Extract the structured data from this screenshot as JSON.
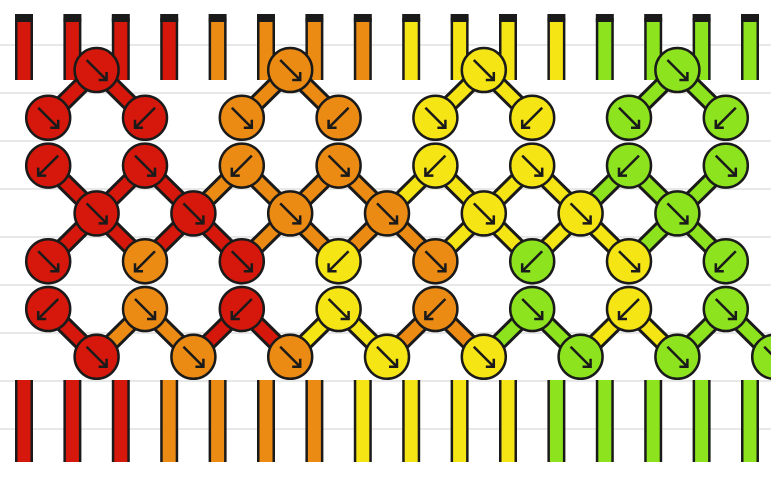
{
  "diagram": {
    "type": "friendship-bracelet-knot-pattern",
    "strand_colors": [
      "#d5180b",
      "#d5180b",
      "#d5180b",
      "#d5180b",
      "#ec8b14",
      "#ec8b14",
      "#ec8b14",
      "#ec8b14",
      "#f6e514",
      "#f6e514",
      "#f6e514",
      "#f6e514",
      "#8de31e",
      "#8de31e",
      "#8de31e",
      "#8de31e"
    ],
    "palette": {
      "red": "#d5180b",
      "orange": "#ec8b14",
      "yellow": "#f6e514",
      "green": "#8de31e",
      "outline": "#1a1a1a",
      "background": "#ffffff",
      "rule_line": "#d2d2d2"
    },
    "knot_rows": [
      {
        "knots": [
          {
            "color": "red",
            "dir": "forward"
          },
          {
            "color": "orange",
            "dir": "forward"
          },
          {
            "color": "yellow",
            "dir": "forward"
          },
          {
            "color": "green",
            "dir": "forward"
          }
        ]
      },
      {
        "knots": [
          {
            "color": "red",
            "dir": "forward"
          },
          {
            "color": "red",
            "dir": "backward"
          },
          {
            "color": "orange",
            "dir": "forward"
          },
          {
            "color": "orange",
            "dir": "backward"
          },
          {
            "color": "yellow",
            "dir": "forward"
          },
          {
            "color": "yellow",
            "dir": "backward"
          },
          {
            "color": "green",
            "dir": "forward"
          },
          {
            "color": "green",
            "dir": "backward"
          }
        ]
      },
      {
        "knots": [
          {
            "color": "red",
            "dir": "backward"
          },
          {
            "color": "red",
            "dir": "forward"
          },
          {
            "color": "orange",
            "dir": "backward"
          },
          {
            "color": "orange",
            "dir": "forward"
          },
          {
            "color": "yellow",
            "dir": "backward"
          },
          {
            "color": "yellow",
            "dir": "forward"
          },
          {
            "color": "green",
            "dir": "backward"
          },
          {
            "color": "green",
            "dir": "forward"
          }
        ]
      },
      {
        "knots": [
          {
            "color": "red",
            "dir": "forward"
          },
          {
            "color": "red",
            "dir": "forward"
          },
          {
            "color": "orange",
            "dir": "forward"
          },
          {
            "color": "orange",
            "dir": "forward"
          },
          {
            "color": "yellow",
            "dir": "forward"
          },
          {
            "color": "yellow",
            "dir": "forward"
          },
          {
            "color": "green",
            "dir": "forward"
          }
        ]
      },
      {
        "knots": [
          {
            "color": "red",
            "dir": "forward"
          },
          {
            "color": "orange",
            "dir": "backward"
          },
          {
            "color": "red",
            "dir": "forward"
          },
          {
            "color": "yellow",
            "dir": "backward"
          },
          {
            "color": "orange",
            "dir": "forward"
          },
          {
            "color": "green",
            "dir": "backward"
          },
          {
            "color": "yellow",
            "dir": "forward"
          },
          {
            "color": "green",
            "dir": "backward"
          }
        ]
      },
      {
        "knots": [
          {
            "color": "red",
            "dir": "backward"
          },
          {
            "color": "orange",
            "dir": "forward"
          },
          {
            "color": "red",
            "dir": "backward"
          },
          {
            "color": "yellow",
            "dir": "forward"
          },
          {
            "color": "orange",
            "dir": "backward"
          },
          {
            "color": "green",
            "dir": "forward"
          },
          {
            "color": "yellow",
            "dir": "backward"
          },
          {
            "color": "green",
            "dir": "forward"
          }
        ]
      },
      {
        "knots": [
          {
            "color": "red",
            "dir": "forward"
          },
          {
            "color": "orange",
            "dir": "forward"
          },
          {
            "color": "orange",
            "dir": "forward"
          },
          {
            "color": "yellow",
            "dir": "forward"
          },
          {
            "color": "yellow",
            "dir": "forward"
          },
          {
            "color": "green",
            "dir": "forward"
          },
          {
            "color": "green",
            "dir": "forward"
          },
          {
            "color": "green",
            "dir": "forward"
          }
        ]
      }
    ],
    "bottom_strand_colors": [
      "red",
      "red",
      "red",
      "orange",
      "orange",
      "orange",
      "orange",
      "yellow",
      "yellow",
      "yellow",
      "yellow",
      "green",
      "green",
      "green",
      "green",
      "green"
    ]
  }
}
